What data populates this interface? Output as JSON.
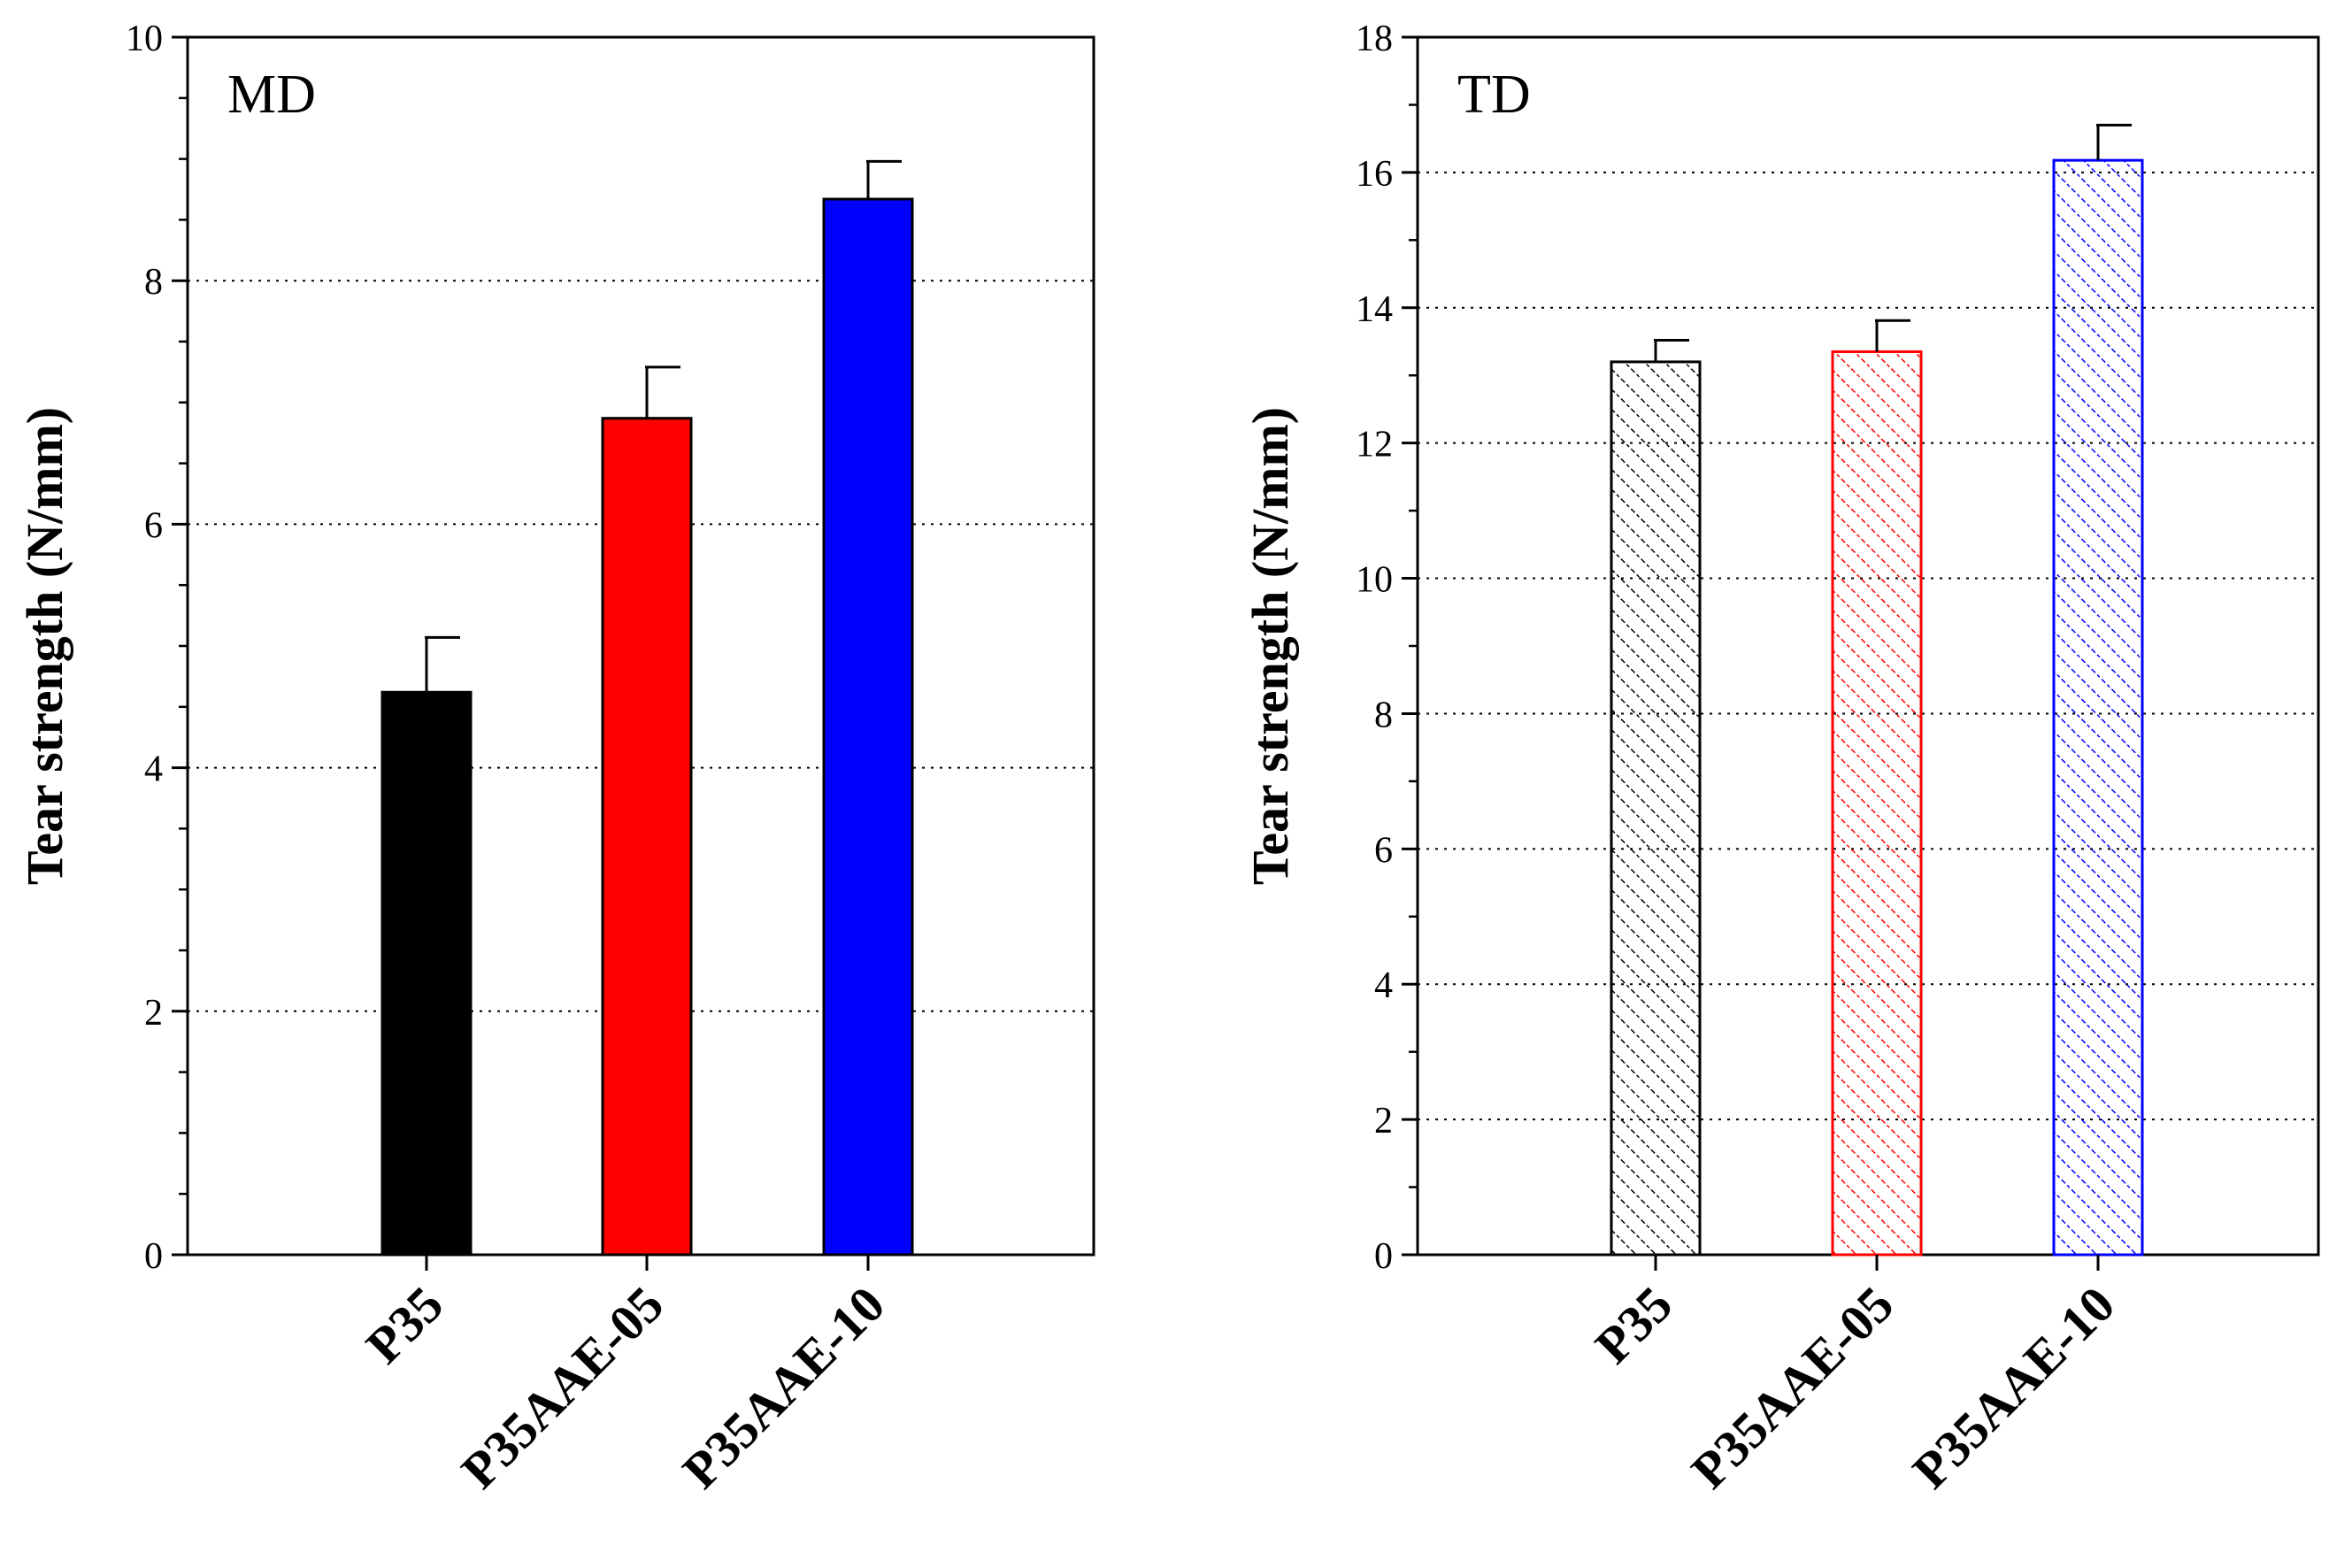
{
  "chart_data": [
    {
      "type": "bar",
      "panel_label": "MD",
      "title": "",
      "xlabel": "",
      "ylabel": "Tear strength (N/mm)",
      "ylim": [
        0,
        10
      ],
      "major_ticks": [
        0,
        2,
        4,
        6,
        8,
        10
      ],
      "minor_step": 0.5,
      "gridlines": [
        2,
        4,
        6,
        8
      ],
      "categories": [
        "P35",
        "P35AAE-05",
        "P35AAE-10"
      ],
      "values": [
        4.62,
        6.87,
        8.67
      ],
      "errors": [
        0.45,
        0.42,
        0.31
      ],
      "colors": [
        "#000000",
        "#ff0000",
        "#0000ff"
      ],
      "fill": "solid",
      "grid": "horizontal dotted"
    },
    {
      "type": "bar",
      "panel_label": "TD",
      "title": "",
      "xlabel": "",
      "ylabel": "Tear strength (N/mm)",
      "ylim": [
        0,
        18
      ],
      "major_ticks": [
        0,
        2,
        4,
        6,
        8,
        10,
        12,
        14,
        16,
        18
      ],
      "minor_step": 1,
      "gridlines": [
        2,
        4,
        6,
        8,
        10,
        12,
        14,
        16
      ],
      "categories": [
        "P35",
        "P35AAE-05",
        "P35AAE-10"
      ],
      "values": [
        13.2,
        13.35,
        16.18
      ],
      "errors": [
        0.32,
        0.46,
        0.52
      ],
      "colors": [
        "#000000",
        "#ff0000",
        "#0000ff"
      ],
      "fill": "hatched",
      "grid": "horizontal dotted"
    }
  ]
}
